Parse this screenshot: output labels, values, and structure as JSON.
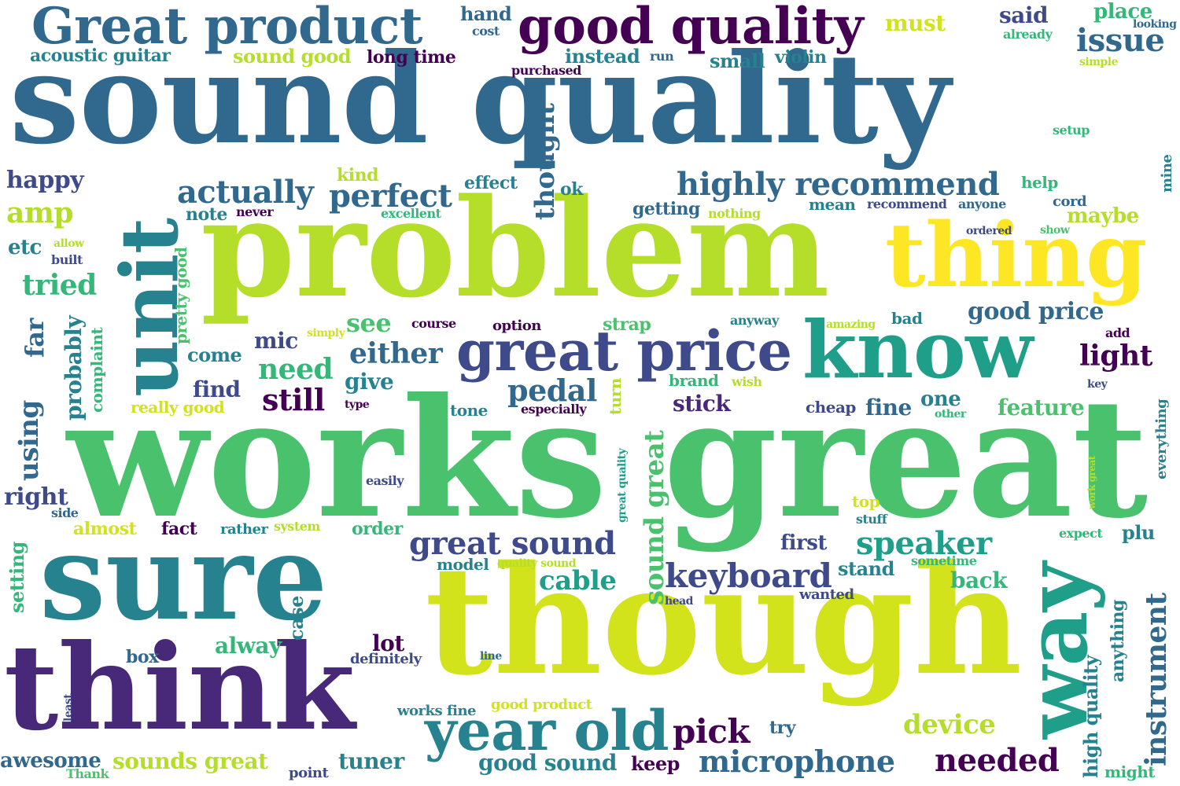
{
  "palette": {
    "dark_purple": "#440154",
    "indigo": "#482878",
    "blue": "#3e4a89",
    "slate_blue": "#31688e",
    "teal": "#26828e",
    "green_teal": "#1f9e89",
    "sea_green": "#35b779",
    "green": "#4ac16d",
    "lime": "#b5de2b",
    "yellow": "#fde725",
    "yellow_green": "#d2e21b"
  },
  "words": [
    {
      "text": "sound quality",
      "color": "#31688e"
    },
    {
      "text": "works great",
      "color": "#4ac16d"
    },
    {
      "text": "problem",
      "color": "#b5de2b"
    },
    {
      "text": "though",
      "color": "#d2e21b"
    },
    {
      "text": "sure",
      "color": "#26828e"
    },
    {
      "text": "think",
      "color": "#482878"
    },
    {
      "text": "unit",
      "color": "#26828e"
    },
    {
      "text": "thing",
      "color": "#fde725"
    },
    {
      "text": "know",
      "color": "#1f9e89"
    },
    {
      "text": "way",
      "color": "#1f9e89"
    },
    {
      "text": "good quality",
      "color": "#440154"
    },
    {
      "text": "Great product",
      "color": "#31688e"
    },
    {
      "text": "great price",
      "color": "#3e4a89"
    },
    {
      "text": "year old",
      "color": "#26828e"
    },
    {
      "text": "highly recommend",
      "color": "#31688e"
    },
    {
      "text": "great sound",
      "color": "#3e4a89"
    },
    {
      "text": "keyboard",
      "color": "#3e4a89"
    },
    {
      "text": "speaker",
      "color": "#1f9e89"
    },
    {
      "text": "microphone",
      "color": "#31688e"
    },
    {
      "text": "needed",
      "color": "#440154"
    },
    {
      "text": "instrument",
      "color": "#31688e"
    },
    {
      "text": "sound great",
      "color": "#4ac16d"
    },
    {
      "text": "thought",
      "color": "#31688e"
    },
    {
      "text": "perfect",
      "color": "#31688e"
    },
    {
      "text": "actually",
      "color": "#31688e"
    },
    {
      "text": "pedal",
      "color": "#31688e"
    },
    {
      "text": "issue",
      "color": "#31688e"
    },
    {
      "text": "cable",
      "color": "#1f9e89"
    },
    {
      "text": "device",
      "color": "#b5de2b"
    },
    {
      "text": "pick",
      "color": "#440154"
    },
    {
      "text": "either",
      "color": "#31688e"
    },
    {
      "text": "still",
      "color": "#440154"
    },
    {
      "text": "need",
      "color": "#35b779"
    },
    {
      "text": "see",
      "color": "#4ac16d"
    },
    {
      "text": "light",
      "color": "#440154"
    },
    {
      "text": "good price",
      "color": "#31688e"
    },
    {
      "text": "sounds great",
      "color": "#b5de2b"
    },
    {
      "text": "good sound",
      "color": "#26828e"
    },
    {
      "text": "tuner",
      "color": "#26828e"
    },
    {
      "text": "keep",
      "color": "#440154"
    },
    {
      "text": "back",
      "color": "#35b779"
    },
    {
      "text": "stand",
      "color": "#26828e"
    },
    {
      "text": "first",
      "color": "#3e4a89"
    },
    {
      "text": "stick",
      "color": "#482878"
    },
    {
      "text": "fine",
      "color": "#31688e"
    },
    {
      "text": "one",
      "color": "#26828e"
    },
    {
      "text": "feature",
      "color": "#4ac16d"
    },
    {
      "text": "mic",
      "color": "#3e4a89"
    },
    {
      "text": "give",
      "color": "#26828e"
    },
    {
      "text": "find",
      "color": "#3e4a89"
    },
    {
      "text": "come",
      "color": "#26828e"
    },
    {
      "text": "tried",
      "color": "#35b779"
    },
    {
      "text": "amp",
      "color": "#b5de2b"
    },
    {
      "text": "happy",
      "color": "#3e4a89"
    },
    {
      "text": "etc",
      "color": "#26828e"
    },
    {
      "text": "far",
      "color": "#31688e"
    },
    {
      "text": "using",
      "color": "#31688e"
    },
    {
      "text": "probably",
      "color": "#26828e"
    },
    {
      "text": "complaint",
      "color": "#35b779"
    },
    {
      "text": "pretty good",
      "color": "#4ac16d"
    },
    {
      "text": "right",
      "color": "#3e4a89"
    },
    {
      "text": "setting",
      "color": "#35b779"
    },
    {
      "text": "case",
      "color": "#26828e"
    },
    {
      "text": "almost",
      "color": "#d2e21b"
    },
    {
      "text": "fact",
      "color": "#440154"
    },
    {
      "text": "order",
      "color": "#35b779"
    },
    {
      "text": "alway",
      "color": "#35b779"
    },
    {
      "text": "lot",
      "color": "#440154"
    },
    {
      "text": "box",
      "color": "#31688e"
    },
    {
      "text": "awesome",
      "color": "#31688e"
    },
    {
      "text": "model",
      "color": "#26828e"
    },
    {
      "text": "acoustic guitar",
      "color": "#26828e"
    },
    {
      "text": "sound good",
      "color": "#b5de2b"
    },
    {
      "text": "long time",
      "color": "#440154"
    },
    {
      "text": "hand",
      "color": "#31688e"
    },
    {
      "text": "cost",
      "color": "#31688e"
    },
    {
      "text": "must",
      "color": "#d2e21b"
    },
    {
      "text": "instead",
      "color": "#26828e"
    },
    {
      "text": "run",
      "color": "#31688e"
    },
    {
      "text": "small",
      "color": "#26828e"
    },
    {
      "text": "violin",
      "color": "#26828e"
    },
    {
      "text": "purchased",
      "color": "#440154"
    },
    {
      "text": "said",
      "color": "#3e4a89"
    },
    {
      "text": "place",
      "color": "#35b779"
    },
    {
      "text": "already",
      "color": "#35b779"
    },
    {
      "text": "looking",
      "color": "#31688e"
    },
    {
      "text": "simple",
      "color": "#b5de2b"
    },
    {
      "text": "setup",
      "color": "#35b779"
    },
    {
      "text": "mine",
      "color": "#26828e"
    },
    {
      "text": "help",
      "color": "#35b779"
    },
    {
      "text": "cord",
      "color": "#31688e"
    },
    {
      "text": "maybe",
      "color": "#b5de2b"
    },
    {
      "text": "show",
      "color": "#4ac16d"
    },
    {
      "text": "ordered",
      "color": "#3e4a89"
    },
    {
      "text": "mean",
      "color": "#26828e"
    },
    {
      "text": "recommend",
      "color": "#3e4a89"
    },
    {
      "text": "anyone",
      "color": "#31688e"
    },
    {
      "text": "getting",
      "color": "#31688e"
    },
    {
      "text": "nothing",
      "color": "#b5de2b"
    },
    {
      "text": "ok",
      "color": "#26828e"
    },
    {
      "text": "effect",
      "color": "#26828e"
    },
    {
      "text": "kind",
      "color": "#b5de2b"
    },
    {
      "text": "note",
      "color": "#26828e"
    },
    {
      "text": "never",
      "color": "#440154"
    },
    {
      "text": "excellent",
      "color": "#35b779"
    },
    {
      "text": "allow",
      "color": "#b5de2b"
    },
    {
      "text": "built",
      "color": "#3e4a89"
    },
    {
      "text": "simply",
      "color": "#d2e21b"
    },
    {
      "text": "course",
      "color": "#440154"
    },
    {
      "text": "option",
      "color": "#440154"
    },
    {
      "text": "strap",
      "color": "#4ac16d"
    },
    {
      "text": "anyway",
      "color": "#26828e"
    },
    {
      "text": "amazing",
      "color": "#b5de2b"
    },
    {
      "text": "bad",
      "color": "#26828e"
    },
    {
      "text": "add",
      "color": "#440154"
    },
    {
      "text": "brand",
      "color": "#35b779"
    },
    {
      "text": "wish",
      "color": "#b5de2b"
    },
    {
      "text": "key",
      "color": "#3e4a89"
    },
    {
      "text": "really good",
      "color": "#d2e21b"
    },
    {
      "text": "type",
      "color": "#440154"
    },
    {
      "text": "tone",
      "color": "#26828e"
    },
    {
      "text": "especially",
      "color": "#440154"
    },
    {
      "text": "cheap",
      "color": "#3e4a89"
    },
    {
      "text": "other",
      "color": "#35b779"
    },
    {
      "text": "everything",
      "color": "#26828e"
    },
    {
      "text": "turn",
      "color": "#b5de2b"
    },
    {
      "text": "great quality",
      "color": "#1f9e89"
    },
    {
      "text": "easily",
      "color": "#3e4a89"
    },
    {
      "text": "top",
      "color": "#d2e21b"
    },
    {
      "text": "stuff",
      "color": "#26828e"
    },
    {
      "text": "work great",
      "color": "#b5de2b"
    },
    {
      "text": "expect",
      "color": "#35b779"
    },
    {
      "text": "plu",
      "color": "#26828e"
    },
    {
      "text": "side",
      "color": "#31688e"
    },
    {
      "text": "rather",
      "color": "#26828e"
    },
    {
      "text": "system",
      "color": "#b5de2b"
    },
    {
      "text": "quality sound",
      "color": "#b5de2b"
    },
    {
      "text": "sometime",
      "color": "#35b779"
    },
    {
      "text": "head",
      "color": "#3e4a89"
    },
    {
      "text": "wanted",
      "color": "#3e4a89"
    },
    {
      "text": "high quality",
      "color": "#26828e"
    },
    {
      "text": "anything",
      "color": "#26828e"
    },
    {
      "text": "definitely",
      "color": "#3e4a89"
    },
    {
      "text": "line",
      "color": "#31688e"
    },
    {
      "text": "least",
      "color": "#3e4a89"
    },
    {
      "text": "works fine",
      "color": "#26828e"
    },
    {
      "text": "good product",
      "color": "#d2e21b"
    },
    {
      "text": "try",
      "color": "#31688e"
    },
    {
      "text": "Thank",
      "color": "#4ac16d"
    },
    {
      "text": "point",
      "color": "#3e4a89"
    },
    {
      "text": "might",
      "color": "#35b779"
    }
  ]
}
